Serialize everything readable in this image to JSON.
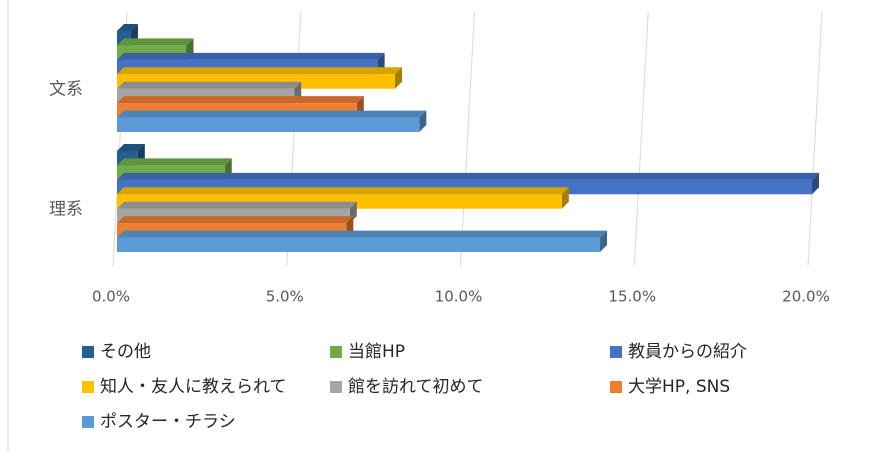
{
  "chart_data": {
    "type": "bar3d_horizontal",
    "categories": [
      "文系",
      "理系"
    ],
    "series": [
      {
        "name": "その他",
        "color": "#255e91",
        "values": [
          0.4,
          0.6
        ]
      },
      {
        "name": "当館HP",
        "color": "#70ad47",
        "values": [
          2.0,
          3.1
        ]
      },
      {
        "name": "教員からの紹介",
        "color": "#4472c4",
        "values": [
          7.5,
          20.0
        ]
      },
      {
        "name": "知人・友人に教えられて",
        "color": "#ffc000",
        "values": [
          8.0,
          12.8
        ]
      },
      {
        "name": "館を訪れて初めて",
        "color": "#a5a5a5",
        "values": [
          5.1,
          6.7
        ]
      },
      {
        "name": "大学HP, SNS",
        "color": "#ed7d31",
        "values": [
          6.9,
          6.6
        ]
      },
      {
        "name": "ポスター・チラシ",
        "color": "#5b9bd5",
        "values": [
          8.7,
          13.9
        ]
      }
    ],
    "xlim": [
      0,
      20
    ],
    "xticks": [
      {
        "value": 0,
        "label": "0.0%"
      },
      {
        "value": 5,
        "label": "5.0%"
      },
      {
        "value": 10,
        "label": "10.0%"
      },
      {
        "value": 15,
        "label": "15.0%"
      },
      {
        "value": 20,
        "label": "20.0%"
      }
    ],
    "grid": true
  }
}
